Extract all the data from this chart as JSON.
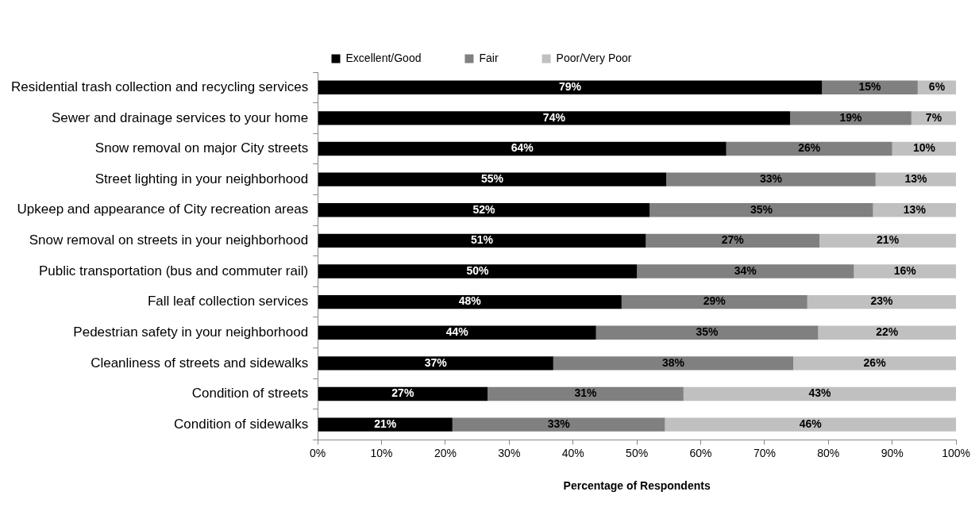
{
  "chart_data": {
    "type": "bar",
    "orientation": "horizontal",
    "stacked": true,
    "xlabel": "Percentage of Respondents",
    "categories": [
      "Residential trash collection and recycling services",
      "Sewer and drainage services to your home",
      "Snow removal on major City streets",
      "Street lighting in your neighborhood",
      "Upkeep and appearance of City recreation areas",
      "Snow removal on streets in your neighborhood",
      "Public transportation (bus and commuter rail)",
      "Fall leaf collection services",
      "Pedestrian safety in your neighborhood",
      "Cleanliness of streets and sidewalks",
      "Condition of streets",
      "Condition of sidewalks"
    ],
    "series": [
      {
        "name": "Excellent/Good",
        "color": "#000000",
        "values": [
          79,
          74,
          64,
          54.6,
          52,
          51.4,
          50,
          47.6,
          43.6,
          36.9,
          26.6,
          21.1
        ],
        "value_labels": [
          "79%",
          "74%",
          "64%",
          "55%",
          "52%",
          "51%",
          "50%",
          "48%",
          "44%",
          "37%",
          "27%",
          "21%"
        ]
      },
      {
        "name": "Fair",
        "color": "#808080",
        "values": [
          15,
          19,
          26,
          32.8,
          35,
          27.2,
          34,
          29.1,
          34.8,
          37.6,
          30.7,
          33.3
        ],
        "value_labels": [
          "15%",
          "19%",
          "26%",
          "33%",
          "35%",
          "27%",
          "34%",
          "29%",
          "35%",
          "38%",
          "31%",
          "33%"
        ]
      },
      {
        "name": "Poor/Very Poor",
        "color": "#c0c0c0",
        "values": [
          6,
          7,
          10,
          12.6,
          13,
          21.4,
          16,
          23.3,
          21.6,
          25.5,
          42.7,
          45.6
        ],
        "value_labels": [
          "6%",
          "7%",
          "10%",
          "13%",
          "13%",
          "21%",
          "16%",
          "23%",
          "22%",
          "26%",
          "43%",
          "46%"
        ]
      }
    ],
    "xlim": [
      0,
      100
    ],
    "xticks": [
      {
        "value": 0,
        "label": "0%"
      },
      {
        "value": 10,
        "label": "10%"
      },
      {
        "value": 20,
        "label": "20%"
      },
      {
        "value": 30,
        "label": "30%"
      },
      {
        "value": 40,
        "label": "40%"
      },
      {
        "value": 50,
        "label": "50%"
      },
      {
        "value": 60,
        "label": "60%"
      },
      {
        "value": 70,
        "label": "70%"
      },
      {
        "value": 80,
        "label": "80%"
      },
      {
        "value": 90,
        "label": "90%"
      },
      {
        "value": 100,
        "label": "100%"
      }
    ],
    "grid": false,
    "legend": "top"
  }
}
